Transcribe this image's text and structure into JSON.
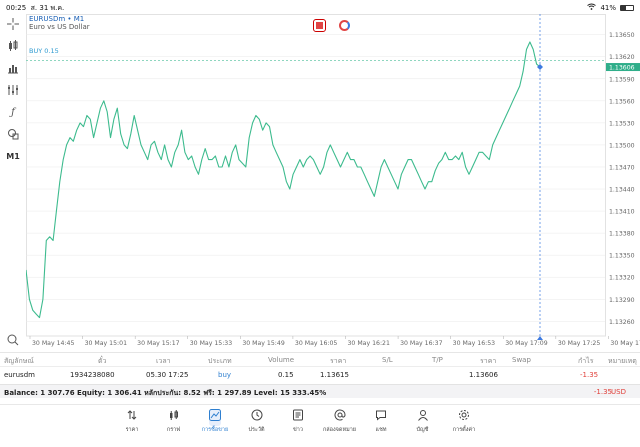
{
  "status_bar": {
    "time": "00:25",
    "date": "ส. 31 พ.ค.",
    "battery": "41%",
    "battery_level": 0.41
  },
  "chart": {
    "symbol": "EURUSDm • M1",
    "description": "Euro vs US Dollar",
    "order_line_label": "BUY 0.15",
    "current_price_label": "1.13606",
    "y_ticks": [
      "1.13650",
      "1.13620",
      "1.13590",
      "1.13560",
      "1.13530",
      "1.13500",
      "1.13470",
      "1.13440",
      "1.13410",
      "1.13380",
      "1.13350",
      "1.13320",
      "1.13290",
      "1.13260"
    ],
    "x_ticks": [
      "30 May 14:45",
      "30 May 15:01",
      "30 May 15:17",
      "30 May 15:33",
      "30 May 15:49",
      "30 May 16:05",
      "30 May 16:21",
      "30 May 16:37",
      "30 May 16:53",
      "30 May 17:09",
      "30 May 17:25",
      "30 May 17:41"
    ],
    "colors": {
      "line": "#3dbb8e",
      "grid": "#e9e9e9",
      "order_line": "#7fd0b6",
      "crosshair": "#3d7ae0",
      "price_tag": "#2fae8a"
    }
  },
  "chart_data": {
    "type": "line",
    "title": "EURUSDm • M1",
    "xlabel": "",
    "ylabel": "",
    "ylim": [
      1.1324,
      1.1367
    ],
    "buy_order_price": 1.13615,
    "current_price": 1.13606,
    "series": [
      {
        "name": "EURUSDm",
        "x_from": "30 May 14:45",
        "values": [
          1.1333,
          1.1329,
          1.13275,
          1.1327,
          1.13265,
          1.1329,
          1.1337,
          1.13375,
          1.1337,
          1.1341,
          1.1345,
          1.1348,
          1.135,
          1.1351,
          1.13505,
          1.1352,
          1.1353,
          1.13525,
          1.1354,
          1.13535,
          1.1351,
          1.1353,
          1.1355,
          1.1356,
          1.13545,
          1.1351,
          1.13535,
          1.1355,
          1.13515,
          1.135,
          1.13495,
          1.13515,
          1.1354,
          1.1352,
          1.135,
          1.1349,
          1.1348,
          1.135,
          1.13505,
          1.1349,
          1.1348,
          1.135,
          1.1348,
          1.1347,
          1.1349,
          1.135,
          1.1352,
          1.1349,
          1.1348,
          1.13485,
          1.1347,
          1.1346,
          1.1348,
          1.13495,
          1.1348,
          1.1348,
          1.13485,
          1.1347,
          1.1347,
          1.13485,
          1.1347,
          1.1349,
          1.135,
          1.1348,
          1.13475,
          1.1347,
          1.1351,
          1.1353,
          1.1354,
          1.13535,
          1.1352,
          1.1353,
          1.13525,
          1.135,
          1.1349,
          1.1348,
          1.1347,
          1.1345,
          1.1344,
          1.1346,
          1.1347,
          1.1348,
          1.1347,
          1.1348,
          1.13485,
          1.1348,
          1.1347,
          1.1346,
          1.1347,
          1.1349,
          1.135,
          1.1349,
          1.1348,
          1.1347,
          1.1348,
          1.1349,
          1.1348,
          1.1348,
          1.1347,
          1.1347,
          1.1346,
          1.1345,
          1.1344,
          1.1343,
          1.1345,
          1.1347,
          1.1348,
          1.1347,
          1.1346,
          1.1345,
          1.1344,
          1.1346,
          1.1347,
          1.1348,
          1.1348,
          1.1347,
          1.1346,
          1.1345,
          1.1344,
          1.1345,
          1.1345,
          1.13465,
          1.13475,
          1.1348,
          1.1349,
          1.1348,
          1.1348,
          1.13485,
          1.1348,
          1.1349,
          1.1347,
          1.1346,
          1.1347,
          1.1348,
          1.1349,
          1.1349,
          1.13485,
          1.1348,
          1.135,
          1.1351,
          1.1352,
          1.1353,
          1.1354,
          1.1355,
          1.1356,
          1.1357,
          1.1358,
          1.136,
          1.1363,
          1.1364,
          1.1363,
          1.1361,
          1.13606
        ]
      }
    ]
  },
  "toolbar": [
    "crosshair-icon",
    "candles-icon",
    "bars-icon",
    "indicators-icon",
    "function-icon",
    "shapes-icon",
    "timeframe"
  ],
  "toolbar_timeframe": "M1",
  "table": {
    "headers": [
      "สัญลักษณ์",
      "ตั๋ว",
      "เวลา",
      "ประเภท",
      "Volume",
      "ราคา",
      "S/L",
      "T/P",
      "ราคา",
      "Swap",
      "กำไร",
      "หมายเหตุ"
    ],
    "row": {
      "symbol": "eurusdm",
      "ticket": "1934238080",
      "time": "05.30 17:25",
      "type": "buy",
      "volume": "0.15",
      "open_price": "1.13615",
      "current_price": "1.13606",
      "profit": "-1.35"
    }
  },
  "balance": {
    "text": "Balance: 1 307.76 Equity: 1 306.41 หลักประกัน: 8.52 ฟรี: 1 297.89 Level: 15 333.45%",
    "profit": "-1.35",
    "currency": "USD"
  },
  "nav": {
    "items": [
      {
        "label": "ราคา",
        "icon": "arrows-icon"
      },
      {
        "label": "กราฟ",
        "icon": "chart-icon"
      },
      {
        "label": "การซื้อขาย",
        "icon": "trade-icon"
      },
      {
        "label": "ประวัติ",
        "icon": "history-icon"
      },
      {
        "label": "ข่าว",
        "icon": "news-icon"
      },
      {
        "label": "กล่องจดหมาย",
        "icon": "mail-icon"
      },
      {
        "label": "แชท",
        "icon": "chat-icon"
      },
      {
        "label": "บัญชี",
        "icon": "account-icon"
      },
      {
        "label": "การตั้งค่า",
        "icon": "settings-icon"
      }
    ],
    "active_index": 2
  }
}
